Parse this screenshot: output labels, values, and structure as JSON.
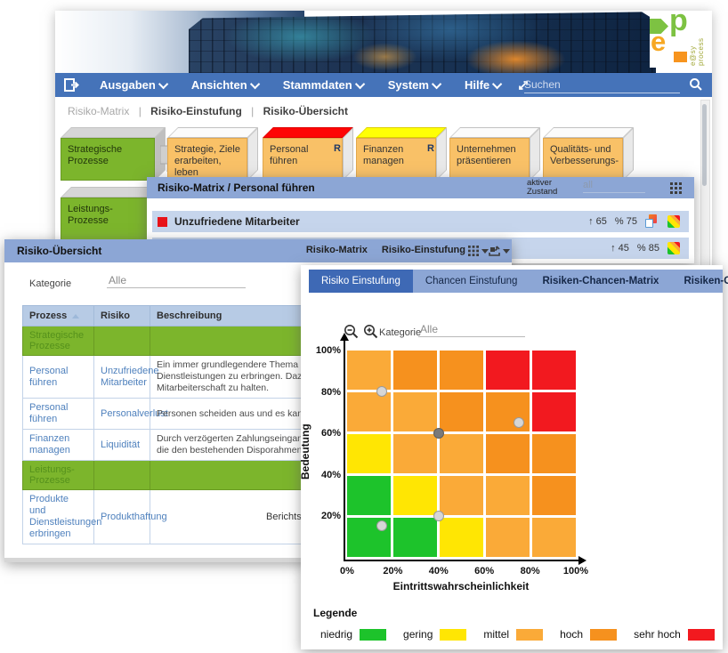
{
  "logo": {
    "text": "e@sy process"
  },
  "navbar": {
    "items": [
      {
        "label": "Ausgaben"
      },
      {
        "label": "Ansichten"
      },
      {
        "label": "Stammdaten"
      },
      {
        "label": "System"
      },
      {
        "label": "Hilfe"
      }
    ],
    "search_placeholder": "Suchen"
  },
  "breadcrumb": {
    "items": [
      "Risiko-Matrix",
      "Risiko-Einstufung",
      "Risiko-Übersicht"
    ],
    "separator": "|"
  },
  "process_map": {
    "row1": [
      {
        "label": "Strategische Prozesse"
      },
      {
        "label": "Strategie, Ziele erarbeiten, leben"
      },
      {
        "label": "Personal führen",
        "badge": "R"
      },
      {
        "label": "Finanzen managen",
        "badge": "R"
      },
      {
        "label": "Unternehmen präsentieren"
      },
      {
        "label": "Qualitäts- und Verbesserungs-"
      }
    ],
    "row2": [
      {
        "label": "Leistungs- Prozesse"
      }
    ]
  },
  "risk_matrix_panel": {
    "title": "Risiko-Matrix / Personal führen",
    "state_label": "aktiver Zustand",
    "filter_value": "all",
    "rows": [
      {
        "name": "Unzufriedene Mitarbeiter",
        "impact": "↑ 65",
        "probability": "% 75"
      },
      {
        "name": "",
        "impact": "↑ 45",
        "probability": "% 85"
      }
    ]
  },
  "overview_panel": {
    "title": "Risiko-Übersicht",
    "links": [
      "Risiko-Matrix",
      "Risiko-Einstufung"
    ],
    "kategorie_label": "Kategorie",
    "kategorie_value": "Alle",
    "table": {
      "headers": [
        "Prozess",
        "Risiko",
        "Beschreibung"
      ],
      "rows": [
        {
          "type": "group",
          "prozess": "Strategische Prozesse",
          "risiko": "",
          "beschreibung": ""
        },
        {
          "type": "data",
          "prozess": "Personal führen",
          "risiko": "Unzufriedene Mitarbeiter",
          "beschreibung": "Ein immer grundlegendere Thema ist es genügend Personal für unsere Dienstleistungen zu erbringen. Dazu ist es erforderlich, eine gute Zufriedenheit in Mitarbeiterschaft zu halten."
        },
        {
          "type": "data",
          "prozess": "Personal führen",
          "risiko": "Personalverlust",
          "beschreibung": "Personen scheiden aus und es kann kein neues Personal beschafft werden."
        },
        {
          "type": "data",
          "prozess": "Finanzen managen",
          "risiko": "Liquidität",
          "beschreibung": "Durch verzögerten Zahlungseingang können Liquiditätsschwankungen entstehen, die den bestehenden Disporahmen überschreiten."
        },
        {
          "type": "group",
          "prozess": "Leistungs- Prozesse",
          "risiko": "",
          "beschreibung": ""
        },
        {
          "type": "data",
          "prozess": "Produkte und Dienstleistungen erbringen",
          "risiko": "Produkthaftung",
          "beschreibung": ""
        }
      ]
    },
    "footer_label": "Berichtsna"
  },
  "front_panel": {
    "tabs": [
      {
        "label": "Risiko Einstufung",
        "active": true
      },
      {
        "label": "Chancen Einstufung",
        "active": false
      },
      {
        "label": "Risiken-Chancen-Matrix",
        "active": false
      },
      {
        "label": "Risiken-Chancen-Übersicht",
        "active": false
      }
    ],
    "kategorie_label": "Kategorie",
    "kategorie_value": "Alle",
    "legend_title": "Legende"
  },
  "chart_data": {
    "type": "heatmap",
    "xlabel": "Eintrittswahrscheinlichkeit",
    "ylabel": "Bedeutung",
    "x_ticks": [
      "0%",
      "20%",
      "40%",
      "60%",
      "80%",
      "100%"
    ],
    "y_ticks": [
      "100%",
      "80%",
      "60%",
      "40%",
      "20%"
    ],
    "xlim": [
      0,
      100
    ],
    "ylim": [
      0,
      100
    ],
    "grid": "white-gaps",
    "colors": {
      "green": "#1DC32B",
      "yellow": "#FFE603",
      "amber": "#FAAA38",
      "orange": "#F6911E",
      "red": "#F2191F"
    },
    "cells_top_to_bottom": [
      [
        "amber",
        "orange",
        "orange",
        "red",
        "red"
      ],
      [
        "amber",
        "amber",
        "orange",
        "orange",
        "red"
      ],
      [
        "yellow",
        "amber",
        "amber",
        "orange",
        "orange"
      ],
      [
        "green",
        "yellow",
        "amber",
        "amber",
        "orange"
      ],
      [
        "green",
        "green",
        "yellow",
        "amber",
        "amber"
      ]
    ],
    "points": [
      {
        "x": 15,
        "y": 80,
        "shade": "light"
      },
      {
        "x": 40,
        "y": 60,
        "shade": "dark"
      },
      {
        "x": 75,
        "y": 65,
        "shade": "light"
      },
      {
        "x": 40,
        "y": 20,
        "shade": "light"
      },
      {
        "x": 15,
        "y": 15,
        "shade": "light"
      }
    ],
    "legend": [
      {
        "label": "niedrig",
        "color": "#1DC32B"
      },
      {
        "label": "gering",
        "color": "#FFE603"
      },
      {
        "label": "mittel",
        "color": "#FAAA38"
      },
      {
        "label": "hoch",
        "color": "#F6911E"
      },
      {
        "label": "sehr hoch",
        "color": "#F2191F"
      }
    ]
  }
}
